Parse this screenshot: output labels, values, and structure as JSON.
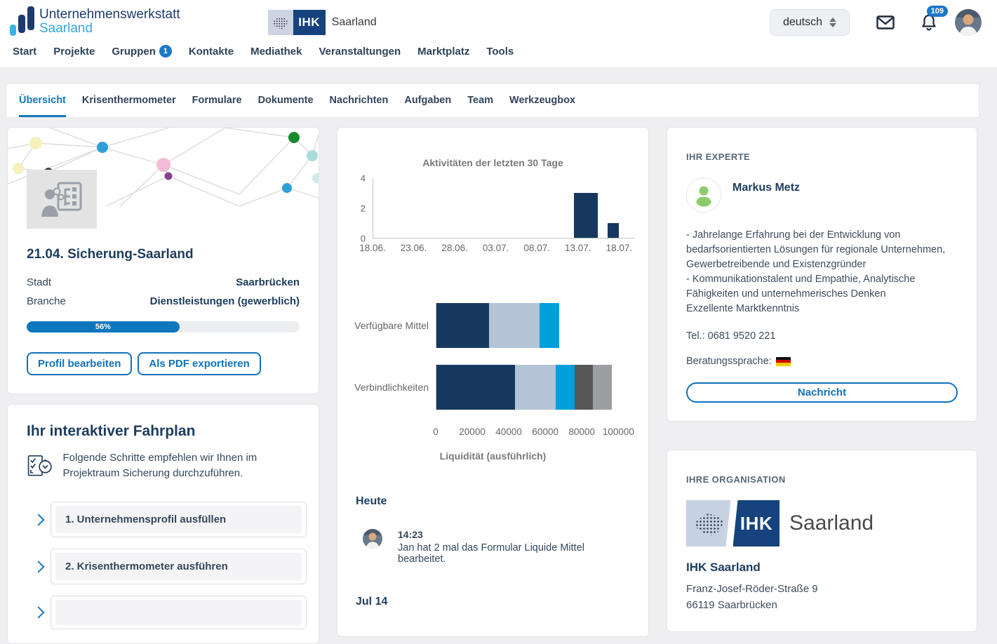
{
  "header": {
    "brand_line1": "Unternehmenswerkstatt",
    "brand_line2": "Saarland",
    "ihk_logo_text": "IHK",
    "ihk_logo_region": "Saarland",
    "language_selector": "deutsch",
    "notification_badge": "109"
  },
  "nav": {
    "items": [
      {
        "label": "Start"
      },
      {
        "label": "Projekte"
      },
      {
        "label": "Gruppen",
        "badge": "1"
      },
      {
        "label": "Kontakte"
      },
      {
        "label": "Mediathek"
      },
      {
        "label": "Veranstaltungen"
      },
      {
        "label": "Marktplatz"
      },
      {
        "label": "Tools"
      }
    ]
  },
  "tabs": {
    "active_index": 0,
    "items": [
      "Übersicht",
      "Krisenthermometer",
      "Formulare",
      "Dokumente",
      "Nachrichten",
      "Aufgaben",
      "Team",
      "Werkzeugbox"
    ]
  },
  "project_card": {
    "title": "21.04. Sicherung-Saarland",
    "fields": [
      {
        "label": "Stadt",
        "value": "Saarbrücken"
      },
      {
        "label": "Branche",
        "value": "Dienstleistungen (gewerblich)"
      }
    ],
    "progress_percent": 56,
    "progress_label": "56%",
    "buttons": [
      "Profil bearbeiten",
      "Als PDF exportieren"
    ]
  },
  "roadmap_card": {
    "title": "Ihr interaktiver Fahrplan",
    "description": "Folgende Schritte empfehlen wir Ihnen im Projektraum Sicherung durchzuführen.",
    "steps": [
      "1. Unternehmensprofil ausfüllen",
      "2. Krisenthermometer ausführen",
      ""
    ]
  },
  "chart_data": [
    {
      "type": "bar",
      "title": "Aktivitäten der letzten 30 Tage",
      "x_ticks": [
        "18.06.",
        "23.06.",
        "28.06.",
        "03.07.",
        "08.07.",
        "13.07.",
        "18.07."
      ],
      "x_tick_step_pct": 15.7,
      "y_ticks": [
        0,
        2,
        4
      ],
      "ylim": [
        0,
        4
      ],
      "bar_color": "#16385f",
      "bars": [
        {
          "date_approx": "15.07.",
          "value": 3,
          "left_pct": 77,
          "width_pct": 9
        },
        {
          "date_approx": "17.07.",
          "value": 1,
          "left_pct": 89.7,
          "width_pct": 4.5
        }
      ],
      "legend": "none",
      "grid": "off"
    },
    {
      "type": "bar-horizontal-stacked",
      "xlabel": "Liquidität (ausführlich)",
      "categories": [
        "Verfügbare Mittel",
        "Verbindlichkeiten"
      ],
      "x_ticks": [
        0,
        20000,
        40000,
        60000,
        80000,
        100000
      ],
      "xlim": [
        0,
        100000
      ],
      "series": [
        {
          "name": "segment-navy",
          "color": "#16385f",
          "values": [
            29000,
            43000
          ]
        },
        {
          "name": "segment-bluegray",
          "color": "#b4c4d6",
          "values": [
            27500,
            22500
          ]
        },
        {
          "name": "segment-cyan",
          "color": "#00a0dc",
          "values": [
            11000,
            10500
          ]
        },
        {
          "name": "segment-darkgray",
          "color": "#575757",
          "values": [
            0,
            10000
          ]
        },
        {
          "name": "segment-gray",
          "color": "#9c9ea1",
          "values": [
            0,
            10500
          ]
        }
      ],
      "legend": "none",
      "grid": "off"
    }
  ],
  "activity_feed": {
    "sections": [
      {
        "heading": "Heute",
        "entries": [
          {
            "time": "14:23",
            "text": "Jan hat 2 mal das Formular Liquide Mittel bearbeitet."
          }
        ]
      },
      {
        "heading": "Jul 14",
        "entries": []
      }
    ]
  },
  "expert_card": {
    "section_title": "IHR EXPERTE",
    "name": "Markus Metz",
    "description_lines": [
      "- Jahrelange Erfahrung bei der Entwicklung von bedarfsorientierten Lösungen für regionale Unternehmen, Gewerbetreibende und Existenzgründer",
      "- Kommunikationstalent und Empathie, Analytische Fähigkeiten und unternehmerisches Denken",
      "Exzellente Marktkenntnis"
    ],
    "phone": "Tel.: 0681 9520 221",
    "language_label": "Beratungssprache:",
    "language_flag": "flag-de-icon",
    "button": "Nachricht"
  },
  "organisation_card": {
    "section_title": "IHRE ORGANISATION",
    "logo_text": "IHK",
    "logo_region": "Saarland",
    "name": "IHK Saarland",
    "address_lines": [
      "Franz-Josef-Röder-Straße 9",
      "66119 Saarbrücken"
    ]
  },
  "colors": {
    "accent_blue": "#1779ba",
    "navy": "#16385f",
    "badge_blue": "#1c78c8",
    "progress_blue": "#0d76bd",
    "page_background": "#efeff1"
  }
}
